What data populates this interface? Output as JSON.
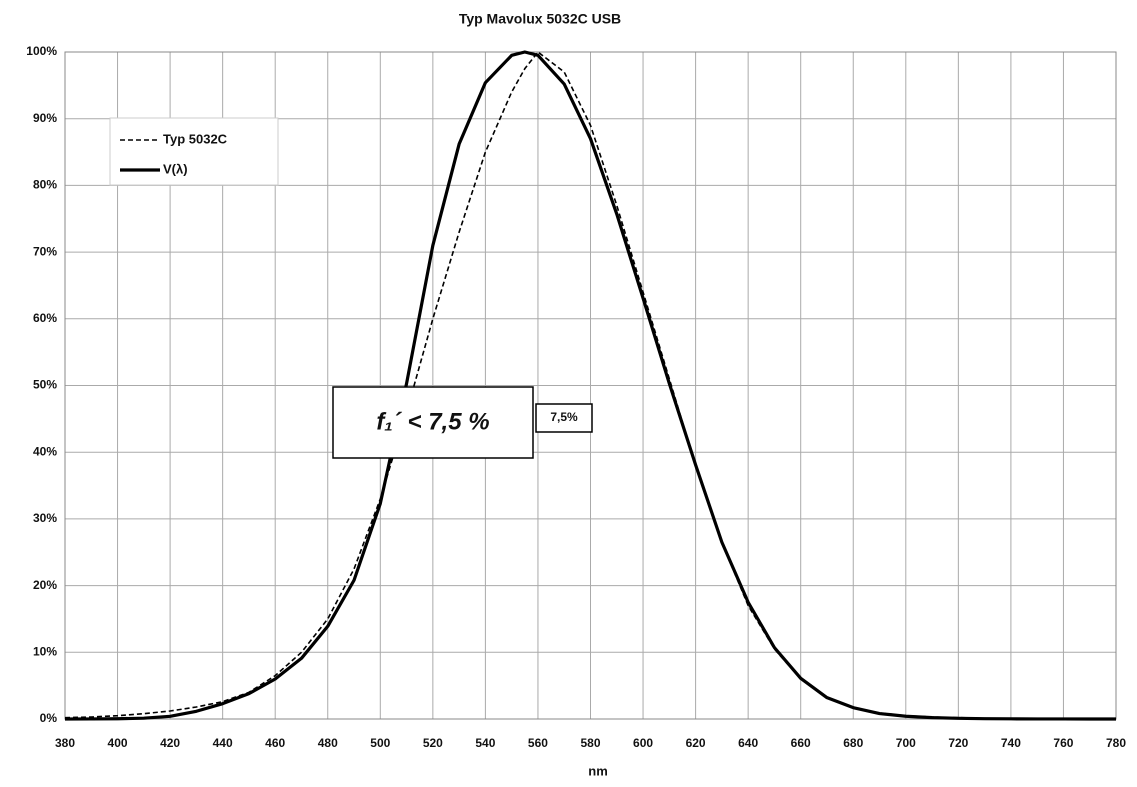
{
  "chart_data": {
    "type": "line",
    "title": "Typ Mavolux 5032C USB",
    "x_label": "nm",
    "x": [
      380,
      390,
      400,
      410,
      420,
      430,
      440,
      450,
      460,
      470,
      480,
      490,
      500,
      510,
      520,
      530,
      540,
      550,
      555,
      560,
      570,
      580,
      590,
      600,
      610,
      620,
      630,
      640,
      650,
      660,
      670,
      680,
      690,
      700,
      710,
      720,
      730,
      740,
      750,
      760,
      770,
      780
    ],
    "series": [
      {
        "name": "Typ 5032C",
        "color": "#000000",
        "dash": true,
        "values": [
          0.2,
          0.3,
          0.5,
          0.8,
          1.2,
          1.8,
          2.6,
          4.0,
          6.5,
          10.0,
          15.0,
          22.5,
          33.0,
          46.0,
          60.0,
          73.0,
          85.0,
          94.0,
          97.5,
          100,
          97.0,
          89.0,
          77.0,
          64.0,
          51.0,
          38.0,
          26.5,
          17.0,
          10.5,
          6.0,
          3.3,
          1.7,
          0.9,
          0.5,
          0.3,
          0.2,
          0.1,
          0.1,
          0.05,
          0.03,
          0.02,
          0.01
        ]
      },
      {
        "name": "V(λ)",
        "color": "#000000",
        "dash": false,
        "values": [
          0.004,
          0.012,
          0.04,
          0.12,
          0.4,
          1.16,
          2.3,
          3.8,
          6.0,
          9.1,
          13.9,
          20.8,
          32.3,
          50.3,
          71.0,
          86.2,
          95.4,
          99.5,
          100,
          99.5,
          95.2,
          87.0,
          75.7,
          63.1,
          50.3,
          38.1,
          26.5,
          17.5,
          10.7,
          6.1,
          3.2,
          1.7,
          0.82,
          0.41,
          0.21,
          0.1,
          0.05,
          0.025,
          0.012,
          0.006,
          0.003,
          0.0015
        ]
      }
    ],
    "xlim": [
      380,
      780
    ],
    "xticks": [
      380,
      400,
      420,
      440,
      460,
      480,
      500,
      520,
      540,
      560,
      580,
      600,
      620,
      640,
      660,
      680,
      700,
      720,
      740,
      760,
      780
    ],
    "ylim": [
      0,
      100
    ],
    "yticks": [
      {
        "value": 0,
        "label": "0%"
      },
      {
        "value": 10,
        "label": "10%"
      },
      {
        "value": 20,
        "label": "20%"
      },
      {
        "value": 30,
        "label": "30%"
      },
      {
        "value": 40,
        "label": "40%"
      },
      {
        "value": 50,
        "label": "50%"
      },
      {
        "value": 60,
        "label": "60%"
      },
      {
        "value": 70,
        "label": "70%"
      },
      {
        "value": 80,
        "label": "80%"
      },
      {
        "value": 90,
        "label": "90%"
      },
      {
        "value": 100,
        "label": "100%"
      }
    ],
    "grid": true,
    "legend": "upper left",
    "annotations": [
      "f₁´ < 7,5 %",
      "7,5%"
    ]
  }
}
